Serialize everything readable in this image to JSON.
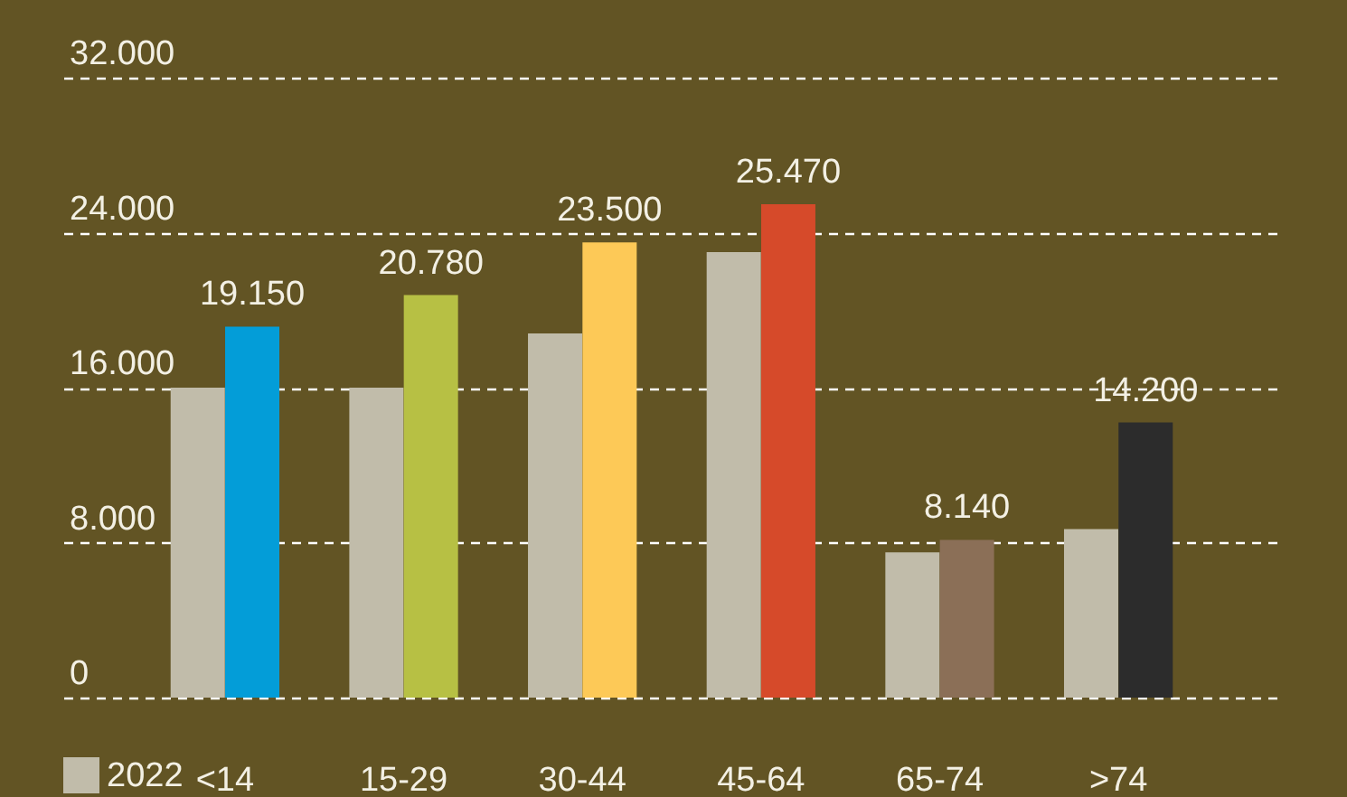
{
  "chart_data": {
    "type": "bar",
    "categories": [
      "<14",
      "15-29",
      "30-44",
      "45-64",
      "65-74",
      ">74"
    ],
    "series": [
      {
        "name": "2022",
        "color": "#c1bcaa",
        "values": [
          16000,
          16000,
          18800,
          23000,
          7500,
          8700
        ]
      },
      {
        "colors": [
          "#039dd8",
          "#b7c044",
          "#fdc957",
          "#d64a2a",
          "#8b6f57",
          "#2c2c2c"
        ],
        "values": [
          19150,
          20780,
          23500,
          25470,
          8140,
          14200
        ],
        "value_labels": [
          "19.150",
          "20.780",
          "23.500",
          "25.470",
          "8.140",
          "14.200"
        ]
      }
    ],
    "ylim": [
      0,
      32000
    ],
    "yticks": [
      0,
      {
        "value": 8000,
        "label": "8.000"
      },
      {
        "value": 16000,
        "label": "16.000"
      },
      {
        "value": 24000,
        "label": "24.000"
      },
      {
        "value": 32000,
        "label": "32.000"
      }
    ],
    "grid": "y",
    "legend": "bottom left"
  }
}
